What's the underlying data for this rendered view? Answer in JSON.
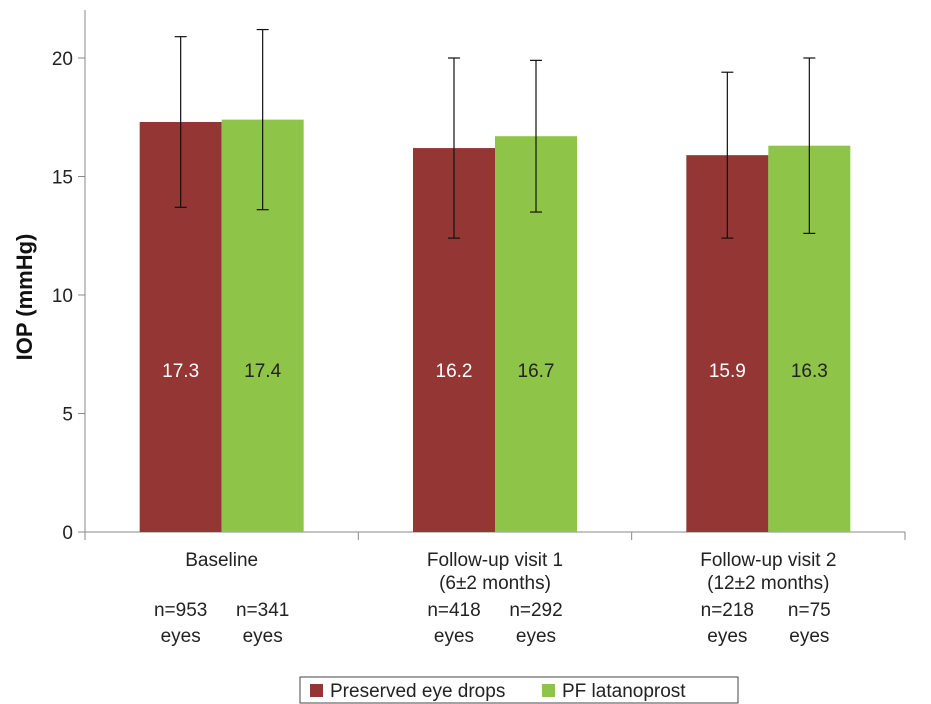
{
  "chart_data": {
    "type": "bar",
    "title": "",
    "xlabel": "",
    "ylabel": "IOP (mmHg)",
    "ylim": [
      0,
      20
    ],
    "yticks": [
      0,
      5,
      10,
      15,
      20
    ],
    "grid": false,
    "legend_position": "bottom",
    "categories": [
      {
        "lines": [
          "Baseline"
        ]
      },
      {
        "lines": [
          "Follow-up visit 1",
          "(6±2 months)"
        ]
      },
      {
        "lines": [
          "Follow-up visit 2",
          "(12±2 months)"
        ]
      }
    ],
    "series": [
      {
        "name": "Preserved eye drops",
        "color": "#933634",
        "label_color": "#ffffff",
        "values": [
          17.3,
          16.2,
          15.9
        ],
        "labels": [
          "17.3",
          "16.2",
          "15.9"
        ],
        "error_low": [
          13.7,
          12.4,
          12.4
        ],
        "error_high": [
          20.9,
          20.0,
          19.4
        ],
        "n": [
          [
            "n=953",
            "eyes"
          ],
          [
            "n=418",
            "eyes"
          ],
          [
            "n=218",
            "eyes"
          ]
        ]
      },
      {
        "name": "PF latanoprost",
        "color": "#8ec549",
        "label_color": "#222222",
        "values": [
          17.4,
          16.7,
          16.3
        ],
        "labels": [
          "17.4",
          "16.7",
          "16.3"
        ],
        "error_low": [
          13.6,
          13.5,
          12.6
        ],
        "error_high": [
          21.2,
          19.9,
          20.0
        ],
        "n": [
          [
            "n=341",
            "eyes"
          ],
          [
            "n=292",
            "eyes"
          ],
          [
            "n=75",
            "eyes"
          ]
        ]
      }
    ]
  }
}
